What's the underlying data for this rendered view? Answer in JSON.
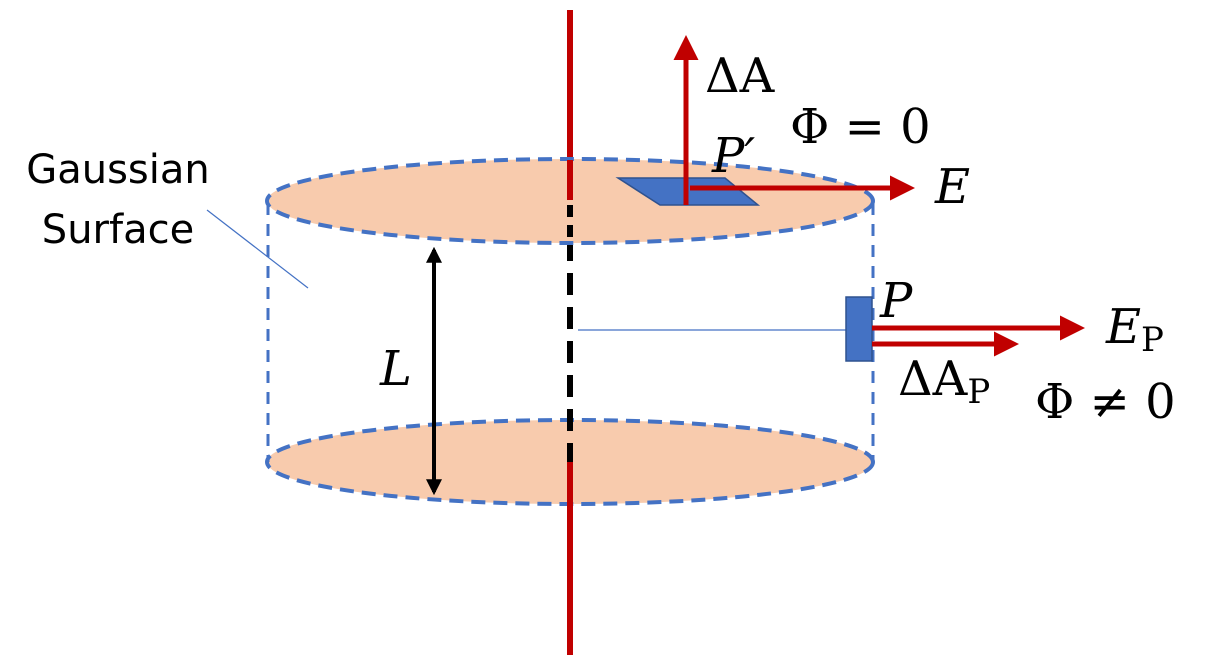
{
  "labels": {
    "gaussian_line1": "Gaussian",
    "gaussian_line2": "Surface",
    "length": "L",
    "delta_a_top": "ΔA",
    "flux_top": "Φ = 0",
    "point_top": "P′",
    "field_top": "E",
    "point_side": "P",
    "field_side_main": "E",
    "field_side_sub": "P",
    "delta_a_side_main": "ΔA",
    "delta_a_side_sub": "P",
    "flux_side": "Φ ≠ 0"
  },
  "colors": {
    "line_charge": "#c00000",
    "surface_fill": "#f8cbad",
    "surface_edge": "#4472c4",
    "patch_fill": "#4472c4",
    "patch_edge": "#2f528f",
    "arrow": "#c00000",
    "dimension": "#000000"
  }
}
